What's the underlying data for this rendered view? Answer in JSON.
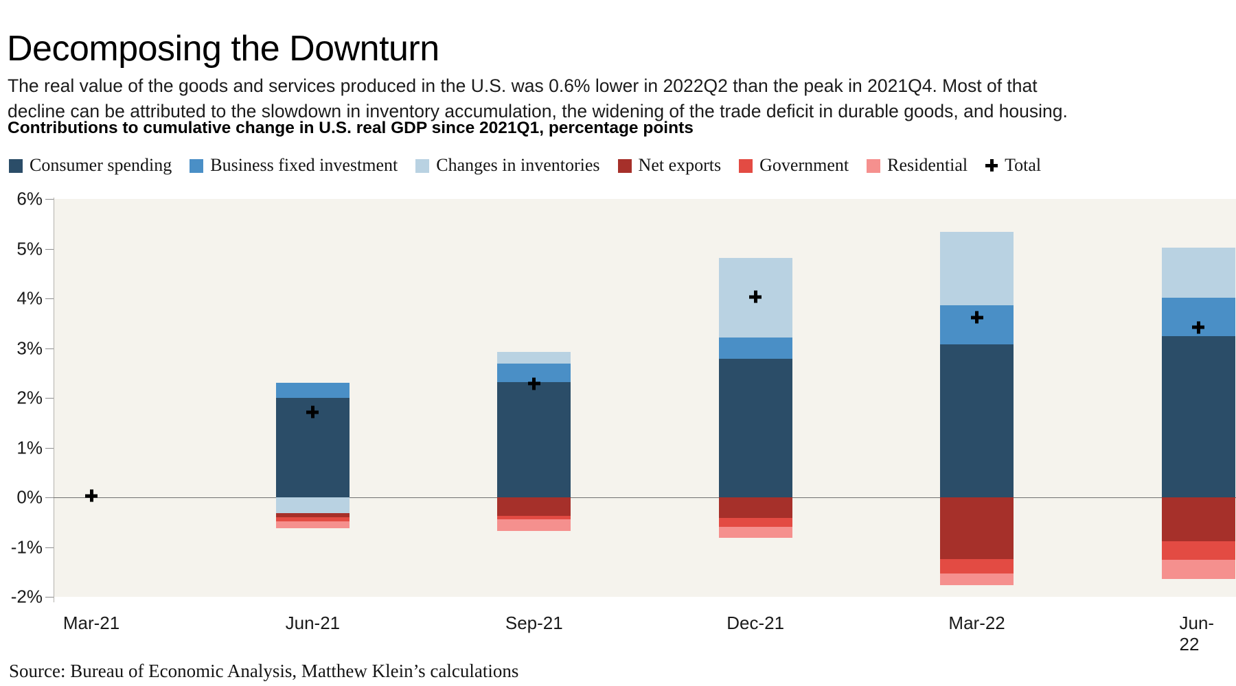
{
  "title": "Decomposing the Downturn",
  "subtitle": "The real value of the goods and services produced in the U.S. was 0.6% lower in 2022Q2 than the peak in 2021Q4. Most of that decline can be attributed to the slowdown in inventory accumulation, the widening of the trade deficit in durable goods, and housing.",
  "heading": "Contributions to cumulative change in U.S. real GDP since 2021Q1, percentage points",
  "source": "Source: Bureau of Economic Analysis, Matthew Klein’s calculations",
  "chart_data": {
    "type": "bar",
    "stacked": true,
    "title": "Contributions to cumulative change in U.S. real GDP since 2021Q1, percentage points",
    "xlabel": "",
    "ylabel": "",
    "unit": "percentage points",
    "categories": [
      "Mar-21",
      "Jun-21",
      "Sep-21",
      "Dec-21",
      "Mar-22",
      "Jun-22"
    ],
    "series": [
      {
        "name": "Consumer spending",
        "color": "#2b4d68",
        "values": [
          0,
          2.0,
          2.32,
          2.78,
          3.08,
          3.24
        ]
      },
      {
        "name": "Business fixed investment",
        "color": "#4a8fc6",
        "values": [
          0,
          0.3,
          0.37,
          0.44,
          0.78,
          0.77
        ]
      },
      {
        "name": "Changes in inventories",
        "color": "#b9d2e2",
        "values": [
          0,
          -0.32,
          0.23,
          1.59,
          1.48,
          1.01
        ]
      },
      {
        "name": "Net exports",
        "color": "#a6302a",
        "values": [
          0,
          -0.08,
          -0.37,
          -0.42,
          -1.24,
          -0.88
        ]
      },
      {
        "name": "Government",
        "color": "#e34b43",
        "values": [
          0,
          -0.08,
          -0.07,
          -0.17,
          -0.29,
          -0.37
        ]
      },
      {
        "name": "Residential",
        "color": "#f5908e",
        "values": [
          0,
          -0.14,
          -0.23,
          -0.22,
          -0.23,
          -0.39
        ]
      }
    ],
    "totals": {
      "name": "Total",
      "marker": "+",
      "values": [
        0,
        1.68,
        2.25,
        4.0,
        3.58,
        3.38
      ]
    },
    "ylim": [
      -2,
      6
    ],
    "ytick_step": 1,
    "ytick_suffix": "%",
    "grid": false,
    "legend_position": "top",
    "plot_bg": "#f5f3ed",
    "zero_line_color": "#6f6f6f"
  }
}
